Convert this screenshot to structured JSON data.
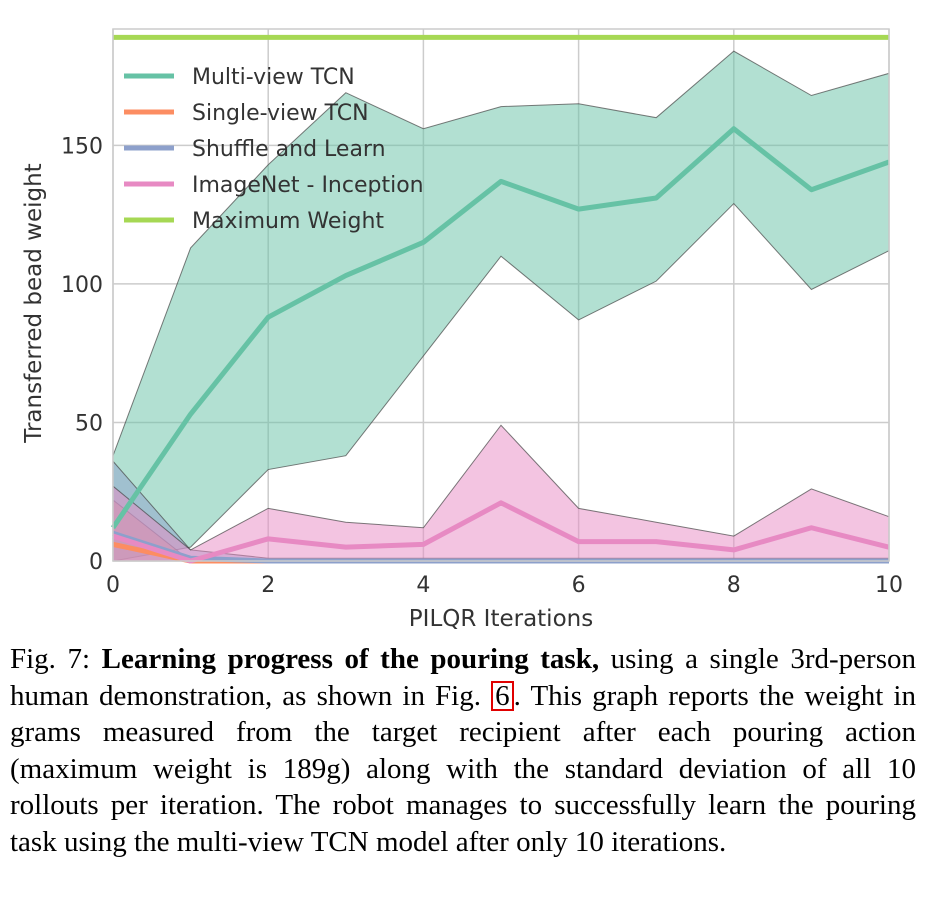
{
  "chart_data": {
    "type": "line",
    "xlabel": "PILQR Iterations",
    "ylabel": "Transferred bead weight",
    "xlim": [
      0,
      10
    ],
    "ylim": [
      0,
      192
    ],
    "xticks": [
      0,
      2,
      4,
      6,
      8,
      10
    ],
    "yticks": [
      0,
      50,
      100,
      150
    ],
    "grid": true,
    "legend_position": "top-left",
    "x": [
      0,
      1,
      2,
      3,
      4,
      5,
      6,
      7,
      8,
      9,
      10
    ],
    "series": [
      {
        "name": "Multi-view TCN",
        "color": "#66c2a5",
        "values": [
          12,
          53,
          88,
          103,
          115,
          137,
          127,
          131,
          156,
          134,
          144
        ],
        "lower": [
          0,
          5,
          33,
          38,
          74,
          110,
          87,
          101,
          129,
          98,
          112
        ],
        "upper": [
          38,
          113,
          143,
          169,
          156,
          164,
          165,
          160,
          184,
          168,
          176
        ]
      },
      {
        "name": "Single-view TCN",
        "color": "#fc8d62",
        "values": [
          6,
          0,
          0,
          0,
          0,
          0,
          0,
          0,
          0,
          0,
          0
        ],
        "lower": [
          0,
          0,
          0,
          0,
          0,
          0,
          0,
          0,
          0,
          0,
          0
        ],
        "upper": [
          22,
          0,
          0,
          0,
          0,
          0,
          0,
          0,
          0,
          0,
          0
        ]
      },
      {
        "name": "Shuffle and Learn",
        "color": "#8da0cb",
        "values": [
          10,
          1,
          0,
          0,
          0,
          0,
          0,
          0,
          0,
          0,
          0
        ],
        "lower": [
          0,
          0,
          0,
          0,
          0,
          0,
          0,
          0,
          0,
          0,
          0
        ],
        "upper": [
          36,
          4,
          1,
          1,
          1,
          1,
          1,
          1,
          1,
          1,
          1
        ]
      },
      {
        "name": "ImageNet - Inception",
        "color": "#e78ac3",
        "values": [
          9,
          0,
          8,
          5,
          6,
          21,
          7,
          7,
          4,
          12,
          5
        ],
        "lower": [
          0,
          0,
          0,
          0,
          0,
          0,
          0,
          0,
          0,
          0,
          0
        ],
        "upper": [
          27,
          4,
          19,
          14,
          12,
          49,
          19,
          14,
          9,
          26,
          16
        ]
      },
      {
        "name": "Maximum Weight",
        "color": "#a6d854",
        "values": [
          189,
          189,
          189,
          189,
          189,
          189,
          189,
          189,
          189,
          189,
          189
        ]
      }
    ]
  },
  "caption": {
    "fig_no": "Fig. 7:",
    "title": "Learning progress of the pouring task,",
    "text_a": " using a single 3rd-person human demonstration, as shown in Fig. ",
    "ref": "6",
    "text_b": ". This graph reports the weight in grams measured from the target recipient after each pouring action (maximum weight is 189g) along with the standard deviation of all 10 rollouts per iteration. The robot manages to successfully learn the pouring task using the multi-view TCN model after only 10 iterations."
  }
}
